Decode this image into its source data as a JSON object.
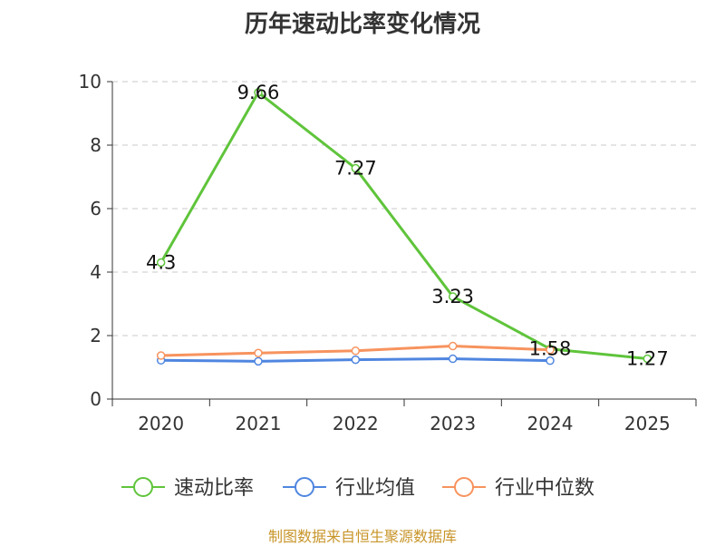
{
  "title": "历年速动比率变化情况",
  "source": "制图数据来自恒生聚源数据库",
  "chart_data": {
    "type": "line",
    "categories": [
      "2020",
      "2021",
      "2022",
      "2023",
      "2024",
      "2025"
    ],
    "ylim": [
      0,
      10
    ],
    "yticks": [
      0,
      2,
      4,
      6,
      8,
      10
    ],
    "grid": true,
    "legend_position": "bottom",
    "series": [
      {
        "name": "速动比率",
        "color": "#5fc43b",
        "values": [
          4.3,
          9.66,
          7.27,
          3.23,
          1.58,
          1.27
        ],
        "labels": [
          "4.3",
          "9.66",
          "7.27",
          "3.23",
          "1.58",
          "1.27"
        ]
      },
      {
        "name": "行业均值",
        "color": "#4f86e0",
        "values": [
          1.22,
          1.19,
          1.24,
          1.27,
          1.21,
          null
        ]
      },
      {
        "name": "行业中位数",
        "color": "#f7935e",
        "values": [
          1.37,
          1.45,
          1.52,
          1.67,
          1.55,
          null
        ]
      }
    ]
  }
}
